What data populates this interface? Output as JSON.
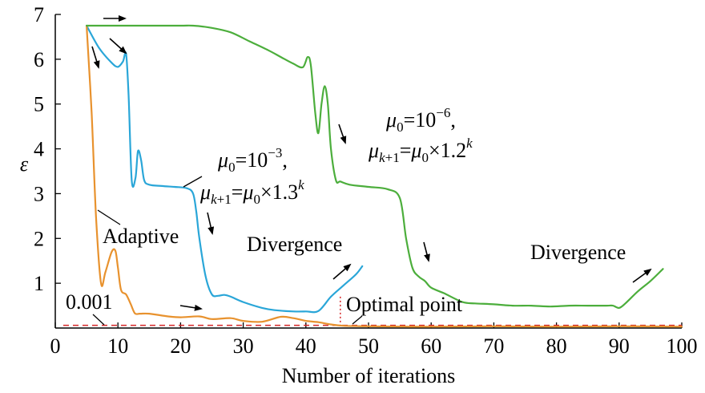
{
  "chart_data": {
    "type": "line",
    "title": "",
    "xlabel": "Number of iterations",
    "ylabel": "ε",
    "xlim": [
      0,
      100
    ],
    "ylim": [
      0,
      7
    ],
    "xticks": [
      0,
      10,
      20,
      30,
      40,
      50,
      60,
      70,
      80,
      90,
      100
    ],
    "yticks": [
      1,
      2,
      3,
      4,
      5,
      6,
      7
    ],
    "grid": false,
    "legend": "none",
    "series": [
      {
        "color": "#2aa6d8",
        "x": [
          5,
          7,
          9,
          10,
          10.8,
          11.3,
          11.7,
          12.2,
          12.8,
          13.2,
          13.7,
          14.2,
          15,
          17,
          19,
          21,
          22,
          22.5,
          23,
          24,
          25,
          26,
          27,
          28,
          30,
          33,
          35,
          38,
          40,
          42,
          44,
          46,
          48,
          49
        ],
        "y": [
          6.75,
          6.25,
          5.92,
          5.83,
          5.95,
          6.12,
          5.2,
          3.3,
          3.35,
          3.95,
          3.75,
          3.3,
          3.2,
          3.17,
          3.15,
          3.12,
          3.0,
          2.6,
          2.0,
          1.15,
          0.75,
          0.72,
          0.74,
          0.7,
          0.58,
          0.45,
          0.4,
          0.37,
          0.37,
          0.38,
          0.7,
          0.95,
          1.2,
          1.38
        ]
      },
      {
        "color": "#e8922e",
        "x": [
          5,
          5.8,
          6.5,
          7.3,
          8,
          9,
          9.6,
          10,
          10.5,
          11.3,
          12,
          12.7,
          13.5,
          15,
          18,
          20,
          23,
          25,
          28,
          30,
          33,
          36,
          38,
          40,
          42,
          44,
          46,
          50,
          60,
          70,
          80,
          90,
          100
        ],
        "y": [
          6.75,
          4.8,
          2.5,
          1.0,
          1.25,
          1.7,
          1.72,
          1.35,
          0.85,
          0.75,
          0.55,
          0.33,
          0.32,
          0.32,
          0.26,
          0.24,
          0.26,
          0.2,
          0.22,
          0.16,
          0.14,
          0.25,
          0.22,
          0.16,
          0.13,
          0.08,
          0.05,
          0.04,
          0.03,
          0.04,
          0.03,
          0.04,
          0.03
        ]
      },
      {
        "color": "#4cae3c",
        "x": [
          5,
          10,
          15,
          20,
          22,
          25,
          28,
          31,
          34,
          36,
          38,
          39.5,
          40.3,
          40.8,
          41.5,
          42,
          42.5,
          43,
          43.5,
          44,
          44.8,
          45.5,
          47,
          50,
          53,
          55,
          56,
          57,
          58,
          59,
          60,
          62,
          65,
          67,
          70,
          73,
          76,
          79,
          82,
          85,
          88,
          89,
          90,
          91,
          93,
          95,
          97
        ],
        "y": [
          6.75,
          6.75,
          6.75,
          6.75,
          6.75,
          6.7,
          6.6,
          6.4,
          6.2,
          6.05,
          5.9,
          5.82,
          6.05,
          5.85,
          4.8,
          4.35,
          5.0,
          5.4,
          5.0,
          4.0,
          3.3,
          3.27,
          3.2,
          3.15,
          3.1,
          2.9,
          2.0,
          1.35,
          1.15,
          1.05,
          0.9,
          0.78,
          0.58,
          0.55,
          0.53,
          0.5,
          0.5,
          0.48,
          0.5,
          0.5,
          0.5,
          0.5,
          0.45,
          0.55,
          0.82,
          1.05,
          1.32
        ]
      }
    ],
    "reference_line": {
      "label": "0.001",
      "y": 0.06,
      "color": "#d62728"
    },
    "optimal_point": {
      "label": "Optimal point",
      "x": 45.5,
      "color": "#d62728"
    },
    "annotations": {
      "adaptive": "Adaptive",
      "blue_mu0": "μ0=10−3,",
      "blue_rule": "μk+1=μ0×1.3k",
      "green_mu0": "μ0=10−6,",
      "green_rule": "μk+1=μ0×1.2k",
      "divergence_1": "Divergence",
      "divergence_2": "Divergence"
    }
  }
}
